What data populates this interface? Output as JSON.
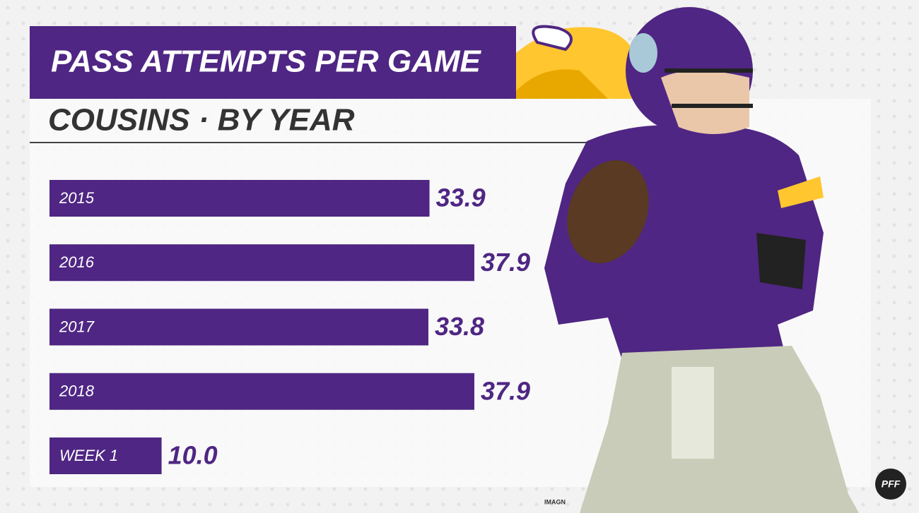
{
  "chart_data": {
    "type": "bar",
    "orientation": "horizontal",
    "title": "PASS ATTEMPTS PER GAME",
    "subtitle": "COUSINS · BY YEAR",
    "categories": [
      "2015",
      "2016",
      "2017",
      "2018",
      "WEEK 1"
    ],
    "values": [
      33.9,
      37.9,
      33.8,
      37.9,
      10.0
    ],
    "value_labels": [
      "33.9",
      "37.9",
      "33.8",
      "37.9",
      "10.0"
    ],
    "color": "#4f2683",
    "credit": "IMAGN",
    "logo": "PFF"
  }
}
